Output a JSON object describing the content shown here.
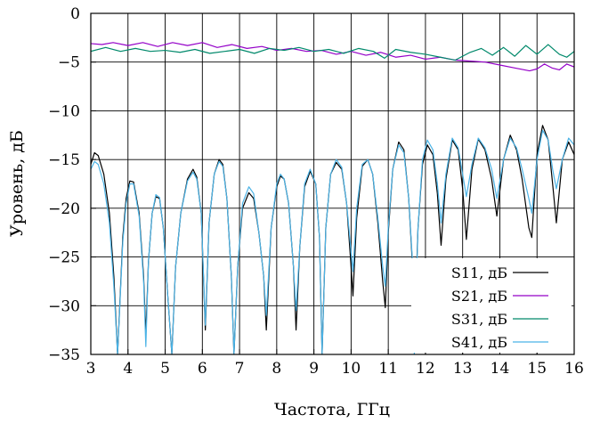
{
  "chart_data": {
    "type": "line",
    "xlabel": "Частота, ГГц",
    "ylabel": "Уровень, дБ",
    "xlim": [
      3,
      16
    ],
    "ylim": [
      -35,
      0
    ],
    "xticks": [
      3,
      4,
      5,
      6,
      7,
      8,
      9,
      10,
      11,
      12,
      13,
      14,
      15,
      16
    ],
    "yticks": [
      0,
      -5,
      -10,
      -15,
      -20,
      -25,
      -30,
      -35
    ],
    "grid": true,
    "legend_position": "bottom-right",
    "series": [
      {
        "name": "S11, дБ",
        "color": "#000000",
        "points": [
          [
            3.0,
            -15.5
          ],
          [
            3.1,
            -14.3
          ],
          [
            3.2,
            -14.6
          ],
          [
            3.35,
            -16.5
          ],
          [
            3.5,
            -20.5
          ],
          [
            3.62,
            -27.0
          ],
          [
            3.72,
            -35.0
          ],
          [
            3.86,
            -23.0
          ],
          [
            3.95,
            -19.0
          ],
          [
            4.05,
            -17.2
          ],
          [
            4.15,
            -17.3
          ],
          [
            4.3,
            -20.5
          ],
          [
            4.42,
            -27.0
          ],
          [
            4.48,
            -33.0
          ],
          [
            4.55,
            -25.5
          ],
          [
            4.65,
            -20.5
          ],
          [
            4.75,
            -18.8
          ],
          [
            4.85,
            -19.0
          ],
          [
            4.95,
            -22.0
          ],
          [
            5.07,
            -29.0
          ],
          [
            5.18,
            -35.0
          ],
          [
            5.28,
            -26.0
          ],
          [
            5.42,
            -20.5
          ],
          [
            5.6,
            -17.0
          ],
          [
            5.75,
            -16.0
          ],
          [
            5.85,
            -16.8
          ],
          [
            5.97,
            -20.5
          ],
          [
            6.08,
            -32.5
          ],
          [
            6.18,
            -21.5
          ],
          [
            6.32,
            -16.5
          ],
          [
            6.45,
            -15.0
          ],
          [
            6.55,
            -15.5
          ],
          [
            6.66,
            -19.0
          ],
          [
            6.78,
            -27.0
          ],
          [
            6.85,
            -35.0
          ],
          [
            6.95,
            -26.0
          ],
          [
            7.08,
            -20.0
          ],
          [
            7.25,
            -18.4
          ],
          [
            7.38,
            -19.0
          ],
          [
            7.52,
            -22.5
          ],
          [
            7.65,
            -27.0
          ],
          [
            7.72,
            -32.5
          ],
          [
            7.85,
            -22.0
          ],
          [
            8.0,
            -17.8
          ],
          [
            8.1,
            -16.7
          ],
          [
            8.2,
            -17.0
          ],
          [
            8.32,
            -19.5
          ],
          [
            8.45,
            -26.0
          ],
          [
            8.52,
            -32.5
          ],
          [
            8.62,
            -24.0
          ],
          [
            8.75,
            -17.8
          ],
          [
            8.9,
            -16.2
          ],
          [
            9.05,
            -17.5
          ],
          [
            9.15,
            -23.0
          ],
          [
            9.22,
            -35.0
          ],
          [
            9.32,
            -22.0
          ],
          [
            9.45,
            -16.5
          ],
          [
            9.6,
            -15.3
          ],
          [
            9.75,
            -16.0
          ],
          [
            9.88,
            -19.5
          ],
          [
            10.0,
            -26.0
          ],
          [
            10.05,
            -29.0
          ],
          [
            10.15,
            -21.0
          ],
          [
            10.3,
            -15.7
          ],
          [
            10.45,
            -15.0
          ],
          [
            10.58,
            -16.5
          ],
          [
            10.72,
            -21.5
          ],
          [
            10.85,
            -27.5
          ],
          [
            10.92,
            -30.2
          ],
          [
            11.0,
            -22.5
          ],
          [
            11.12,
            -16.0
          ],
          [
            11.28,
            -13.2
          ],
          [
            11.42,
            -14.0
          ],
          [
            11.55,
            -19.0
          ],
          [
            11.66,
            -26.5
          ],
          [
            11.7,
            -33.0
          ],
          [
            11.8,
            -22.0
          ],
          [
            11.92,
            -15.5
          ],
          [
            12.05,
            -13.5
          ],
          [
            12.2,
            -14.5
          ],
          [
            12.32,
            -18.5
          ],
          [
            12.42,
            -23.8
          ],
          [
            12.55,
            -17.0
          ],
          [
            12.72,
            -13.0
          ],
          [
            12.88,
            -14.0
          ],
          [
            13.0,
            -18.0
          ],
          [
            13.1,
            -23.2
          ],
          [
            13.25,
            -16.0
          ],
          [
            13.42,
            -12.9
          ],
          [
            13.6,
            -14.0
          ],
          [
            13.78,
            -17.0
          ],
          [
            13.92,
            -20.8
          ],
          [
            14.1,
            -15.0
          ],
          [
            14.28,
            -12.5
          ],
          [
            14.45,
            -14.0
          ],
          [
            14.6,
            -17.0
          ],
          [
            14.78,
            -22.0
          ],
          [
            14.86,
            -23.0
          ],
          [
            15.0,
            -14.5
          ],
          [
            15.15,
            -11.5
          ],
          [
            15.3,
            -13.0
          ],
          [
            15.42,
            -17.5
          ],
          [
            15.52,
            -21.5
          ],
          [
            15.68,
            -15.0
          ],
          [
            15.85,
            -13.2
          ],
          [
            16.0,
            -14.5
          ]
        ]
      },
      {
        "name": "S21, дБ",
        "color": "#9400c8",
        "points": [
          [
            3.0,
            -3.1
          ],
          [
            3.3,
            -3.2
          ],
          [
            3.6,
            -3.0
          ],
          [
            4.0,
            -3.3
          ],
          [
            4.4,
            -3.0
          ],
          [
            4.8,
            -3.4
          ],
          [
            5.2,
            -3.0
          ],
          [
            5.6,
            -3.3
          ],
          [
            6.0,
            -3.0
          ],
          [
            6.4,
            -3.5
          ],
          [
            6.8,
            -3.2
          ],
          [
            7.2,
            -3.6
          ],
          [
            7.6,
            -3.4
          ],
          [
            8.0,
            -3.8
          ],
          [
            8.4,
            -3.6
          ],
          [
            8.8,
            -3.9
          ],
          [
            9.2,
            -3.8
          ],
          [
            9.6,
            -4.2
          ],
          [
            10.0,
            -3.9
          ],
          [
            10.4,
            -4.3
          ],
          [
            10.8,
            -4.0
          ],
          [
            11.2,
            -4.5
          ],
          [
            11.6,
            -4.3
          ],
          [
            12.0,
            -4.7
          ],
          [
            12.4,
            -4.5
          ],
          [
            12.8,
            -4.8
          ],
          [
            13.2,
            -4.9
          ],
          [
            13.6,
            -5.0
          ],
          [
            14.0,
            -5.3
          ],
          [
            14.4,
            -5.6
          ],
          [
            14.8,
            -5.9
          ],
          [
            15.0,
            -5.7
          ],
          [
            15.2,
            -5.2
          ],
          [
            15.4,
            -5.6
          ],
          [
            15.6,
            -5.8
          ],
          [
            15.8,
            -5.2
          ],
          [
            16.0,
            -5.5
          ]
        ]
      },
      {
        "name": "S31, дБ",
        "color": "#00896b",
        "points": [
          [
            3.0,
            -3.9
          ],
          [
            3.4,
            -3.5
          ],
          [
            3.8,
            -3.9
          ],
          [
            4.2,
            -3.6
          ],
          [
            4.6,
            -3.9
          ],
          [
            5.0,
            -3.8
          ],
          [
            5.4,
            -4.0
          ],
          [
            5.8,
            -3.7
          ],
          [
            6.2,
            -4.1
          ],
          [
            6.6,
            -3.9
          ],
          [
            7.0,
            -3.7
          ],
          [
            7.4,
            -4.1
          ],
          [
            7.8,
            -3.6
          ],
          [
            8.2,
            -3.8
          ],
          [
            8.6,
            -3.5
          ],
          [
            9.0,
            -3.9
          ],
          [
            9.4,
            -3.7
          ],
          [
            9.8,
            -4.1
          ],
          [
            10.2,
            -3.6
          ],
          [
            10.6,
            -3.9
          ],
          [
            10.9,
            -4.6
          ],
          [
            11.2,
            -3.7
          ],
          [
            11.6,
            -4.0
          ],
          [
            12.0,
            -4.2
          ],
          [
            12.4,
            -4.5
          ],
          [
            12.8,
            -4.8
          ],
          [
            13.2,
            -4.0
          ],
          [
            13.5,
            -3.6
          ],
          [
            13.8,
            -4.3
          ],
          [
            14.1,
            -3.5
          ],
          [
            14.4,
            -4.4
          ],
          [
            14.7,
            -3.3
          ],
          [
            15.0,
            -4.2
          ],
          [
            15.3,
            -3.2
          ],
          [
            15.6,
            -4.2
          ],
          [
            15.8,
            -4.5
          ],
          [
            16.0,
            -3.9
          ]
        ]
      },
      {
        "name": "S41, дБ",
        "color": "#4bb3e6",
        "points": [
          [
            3.0,
            -16.0
          ],
          [
            3.1,
            -15.2
          ],
          [
            3.2,
            -15.5
          ],
          [
            3.35,
            -17.5
          ],
          [
            3.5,
            -21.5
          ],
          [
            3.62,
            -28.0
          ],
          [
            3.72,
            -35.0
          ],
          [
            3.86,
            -23.5
          ],
          [
            3.95,
            -19.5
          ],
          [
            4.05,
            -17.5
          ],
          [
            4.15,
            -17.5
          ],
          [
            4.3,
            -20.8
          ],
          [
            4.42,
            -27.5
          ],
          [
            4.48,
            -34.2
          ],
          [
            4.55,
            -25.5
          ],
          [
            4.65,
            -20.5
          ],
          [
            4.75,
            -18.6
          ],
          [
            4.85,
            -18.9
          ],
          [
            4.95,
            -22.0
          ],
          [
            5.07,
            -29.0
          ],
          [
            5.18,
            -35.0
          ],
          [
            5.28,
            -26.0
          ],
          [
            5.42,
            -20.5
          ],
          [
            5.6,
            -17.2
          ],
          [
            5.75,
            -16.3
          ],
          [
            5.85,
            -17.0
          ],
          [
            5.97,
            -20.5
          ],
          [
            6.08,
            -32.0
          ],
          [
            6.18,
            -21.5
          ],
          [
            6.32,
            -16.5
          ],
          [
            6.45,
            -15.2
          ],
          [
            6.55,
            -15.7
          ],
          [
            6.66,
            -19.0
          ],
          [
            6.78,
            -27.0
          ],
          [
            6.85,
            -35.0
          ],
          [
            6.95,
            -26.0
          ],
          [
            7.08,
            -19.5
          ],
          [
            7.25,
            -17.8
          ],
          [
            7.38,
            -18.5
          ],
          [
            7.52,
            -22.5
          ],
          [
            7.65,
            -27.0
          ],
          [
            7.72,
            -31.0
          ],
          [
            7.85,
            -22.0
          ],
          [
            8.0,
            -17.5
          ],
          [
            8.1,
            -16.5
          ],
          [
            8.2,
            -17.0
          ],
          [
            8.32,
            -19.5
          ],
          [
            8.45,
            -26.0
          ],
          [
            8.52,
            -30.5
          ],
          [
            8.62,
            -24.0
          ],
          [
            8.75,
            -17.5
          ],
          [
            8.9,
            -16.0
          ],
          [
            9.05,
            -17.5
          ],
          [
            9.15,
            -23.0
          ],
          [
            9.22,
            -35.0
          ],
          [
            9.32,
            -22.0
          ],
          [
            9.45,
            -16.5
          ],
          [
            9.6,
            -15.0
          ],
          [
            9.75,
            -15.8
          ],
          [
            9.88,
            -19.5
          ],
          [
            10.0,
            -24.5
          ],
          [
            10.05,
            -26.5
          ],
          [
            10.15,
            -20.0
          ],
          [
            10.3,
            -15.5
          ],
          [
            10.45,
            -15.0
          ],
          [
            10.58,
            -16.5
          ],
          [
            10.72,
            -21.0
          ],
          [
            10.85,
            -26.0
          ],
          [
            10.92,
            -28.0
          ],
          [
            11.0,
            -22.0
          ],
          [
            11.12,
            -16.0
          ],
          [
            11.28,
            -13.5
          ],
          [
            11.42,
            -14.3
          ],
          [
            11.55,
            -19.0
          ],
          [
            11.66,
            -26.0
          ],
          [
            11.7,
            -35.0
          ],
          [
            11.8,
            -22.0
          ],
          [
            11.92,
            -15.0
          ],
          [
            12.05,
            -13.0
          ],
          [
            12.2,
            -14.0
          ],
          [
            12.32,
            -17.5
          ],
          [
            12.42,
            -21.5
          ],
          [
            12.55,
            -16.5
          ],
          [
            12.72,
            -12.8
          ],
          [
            12.88,
            -13.8
          ],
          [
            13.0,
            -16.5
          ],
          [
            13.1,
            -18.8
          ],
          [
            13.25,
            -15.5
          ],
          [
            13.42,
            -12.8
          ],
          [
            13.6,
            -13.8
          ],
          [
            13.78,
            -16.0
          ],
          [
            13.92,
            -19.0
          ],
          [
            14.1,
            -15.0
          ],
          [
            14.28,
            -12.8
          ],
          [
            14.45,
            -13.8
          ],
          [
            14.6,
            -16.0
          ],
          [
            14.78,
            -19.0
          ],
          [
            14.86,
            -20.5
          ],
          [
            15.0,
            -15.0
          ],
          [
            15.15,
            -12.0
          ],
          [
            15.3,
            -13.0
          ],
          [
            15.42,
            -16.0
          ],
          [
            15.52,
            -18.0
          ],
          [
            15.68,
            -15.0
          ],
          [
            15.85,
            -12.8
          ],
          [
            16.0,
            -13.5
          ]
        ]
      }
    ]
  }
}
